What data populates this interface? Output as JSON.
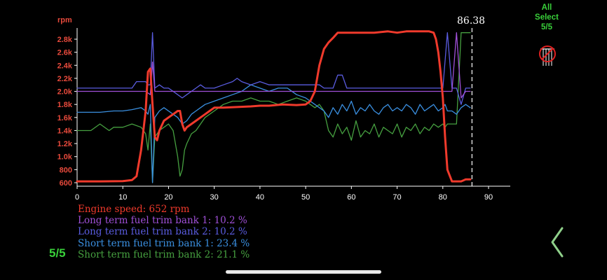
{
  "colors": {
    "engine_speed": "#f03a2c",
    "lt_bank1": "#a050d8",
    "lt_bank2": "#5a5ce0",
    "st_bank1": "#3a8fe0",
    "st_bank2": "#46a040",
    "axis_label": "#e84a3c",
    "accent_green": "#39d03a"
  },
  "side_panel": {
    "select_line1": "All",
    "select_line2": "Select",
    "select_count": "5/5",
    "no_select_icon": "no-select-icon"
  },
  "page_counter": "5/5",
  "cursor_value": "86.38",
  "legend": [
    {
      "text": "Engine speed: 652 rpm",
      "color": "#f03a2c"
    },
    {
      "text": "Long term fuel trim bank 1: 10.2 %",
      "color": "#a050d8"
    },
    {
      "text": "Long term fuel trim bank 2: 10.2 %",
      "color": "#5a5ce0"
    },
    {
      "text": "Short term fuel trim bank 1: 23.4 %",
      "color": "#3a8fe0"
    },
    {
      "text": "Short term fuel trim bank 2: 21.1 %",
      "color": "#46a040"
    }
  ],
  "chart_data": {
    "type": "line",
    "ylabel": "rpm",
    "xlim": [
      0,
      95
    ],
    "ylim": [
      550,
      3000
    ],
    "x_ticks": [
      "0",
      "10",
      "20",
      "30",
      "40",
      "50",
      "60",
      "70",
      "80",
      "90"
    ],
    "y_ticks": [
      "600",
      "800",
      "1.0k",
      "1.2k",
      "1.4k",
      "1.6k",
      "1.8k",
      "2.0k",
      "2.2k",
      "2.4k",
      "2.6k",
      "2.8k"
    ],
    "cursor_x": 86.38,
    "series": [
      {
        "name": "Engine speed",
        "color": "#f03a2c",
        "x": [
          0,
          5,
          10,
          12,
          13,
          14,
          15,
          15.5,
          16,
          16.5,
          17,
          17.5,
          18,
          19,
          20,
          21,
          22,
          22.5,
          23,
          23.5,
          24,
          25,
          26,
          27,
          28,
          29,
          30,
          32,
          35,
          38,
          40,
          42,
          45,
          48,
          50,
          51,
          52,
          53,
          54,
          55,
          56,
          57,
          58,
          60,
          62,
          65,
          68,
          70,
          72,
          75,
          77,
          78,
          78.5,
          79,
          79.5,
          80,
          80.5,
          81,
          82,
          83,
          84,
          85,
          86
        ],
        "y": [
          620,
          620,
          625,
          640,
          700,
          1100,
          1700,
          2300,
          2350,
          1800,
          1300,
          1250,
          1400,
          1550,
          1600,
          1650,
          1700,
          1700,
          1500,
          1400,
          1450,
          1500,
          1550,
          1600,
          1650,
          1700,
          1750,
          1750,
          1760,
          1770,
          1780,
          1780,
          1800,
          1790,
          1800,
          1850,
          2000,
          2400,
          2650,
          2750,
          2820,
          2900,
          2900,
          2900,
          2900,
          2900,
          2920,
          2900,
          2920,
          2920,
          2920,
          2900,
          2800,
          2600,
          2300,
          1900,
          1300,
          800,
          620,
          620,
          620,
          650,
          652
        ]
      },
      {
        "name": "Long term fuel trim bank 1",
        "color": "#a050d8",
        "x": [
          0,
          10,
          15,
          16,
          16.5,
          17,
          17.5,
          18,
          20,
          22,
          24,
          26,
          28,
          30,
          33,
          35,
          40,
          45,
          50,
          52,
          53,
          54,
          55,
          56,
          57,
          58,
          60,
          65,
          70,
          75,
          78,
          79,
          80,
          81,
          82,
          83,
          84,
          85,
          86
        ],
        "y": [
          2000,
          2000,
          2000,
          1950,
          2450,
          2000,
          2000,
          2000,
          2000,
          2000,
          2000,
          2000,
          2000,
          2000,
          2000,
          2000,
          2000,
          2000,
          2000,
          2000,
          2000,
          2000,
          2000,
          2000,
          2000,
          2000,
          2000,
          2000,
          2000,
          2000,
          2000,
          2000,
          2000,
          2000,
          2000,
          2900,
          1900,
          2000,
          2000
        ]
      },
      {
        "name": "Long term fuel trim bank 2",
        "color": "#5a5ce0",
        "x": [
          0,
          5,
          10,
          11,
          12,
          13,
          14,
          15,
          15.5,
          16,
          16.5,
          17,
          18,
          19,
          20,
          21,
          22,
          23,
          24,
          25,
          26,
          27,
          28,
          30,
          32,
          34,
          35,
          36,
          38,
          40,
          42,
          44,
          46,
          48,
          50,
          52,
          53,
          54,
          55,
          56,
          57,
          58,
          59,
          60,
          62,
          64,
          66,
          68,
          70,
          72,
          74,
          76,
          78,
          79,
          80,
          81,
          82,
          83,
          84,
          85,
          86
        ],
        "y": [
          2050,
          2050,
          2050,
          2050,
          2050,
          2150,
          2150,
          2150,
          2100,
          2100,
          2900,
          2050,
          2100,
          2050,
          2050,
          2000,
          1950,
          1900,
          1950,
          2000,
          2050,
          2100,
          2050,
          2050,
          2100,
          2150,
          2200,
          2150,
          2100,
          2150,
          2100,
          2100,
          2100,
          2100,
          2100,
          2100,
          2100,
          2050,
          2050,
          2050,
          2250,
          2250,
          2050,
          2050,
          2050,
          2050,
          2050,
          2050,
          2050,
          2050,
          2050,
          2050,
          2050,
          2050,
          2050,
          2900,
          2050,
          2050,
          1800,
          2050,
          2050
        ]
      },
      {
        "name": "Short term fuel trim bank 1",
        "color": "#3a8fe0",
        "x": [
          0,
          5,
          8,
          10,
          12,
          14,
          15,
          15.5,
          16,
          16.5,
          17,
          18,
          19,
          20,
          21,
          22,
          23,
          24,
          25,
          26,
          27,
          28,
          30,
          32,
          34,
          36,
          38,
          40,
          42,
          44,
          46,
          48,
          50,
          52,
          53,
          54,
          55,
          56,
          57,
          58,
          59,
          60,
          61,
          62,
          63,
          64,
          65,
          66,
          67,
          68,
          69,
          70,
          71,
          72,
          73,
          74,
          75,
          76,
          77,
          78,
          79,
          80,
          80.5,
          81,
          82,
          83,
          84,
          85,
          86
        ],
        "y": [
          1680,
          1680,
          1700,
          1700,
          1720,
          1750,
          1700,
          1650,
          1800,
          600,
          1600,
          1700,
          1750,
          1700,
          1650,
          1600,
          1500,
          1550,
          1650,
          1700,
          1750,
          1800,
          1850,
          1900,
          1950,
          2000,
          2100,
          2050,
          2000,
          2050,
          2050,
          1950,
          1900,
          1800,
          1750,
          1700,
          1600,
          1750,
          1650,
          1800,
          1700,
          1850,
          1650,
          1750,
          1700,
          1800,
          1700,
          1650,
          1750,
          1800,
          1700,
          1750,
          1700,
          1800,
          1750,
          1650,
          1800,
          1700,
          1750,
          1800,
          1700,
          1750,
          1800,
          1700,
          1700,
          1650,
          1750,
          1800,
          1750
        ]
      },
      {
        "name": "Short term fuel trim bank 2",
        "color": "#46a040",
        "x": [
          0,
          3,
          5,
          7,
          8,
          10,
          12,
          14,
          15,
          15.5,
          16,
          16.5,
          17,
          18,
          19,
          20,
          21,
          22,
          22.5,
          23,
          23.5,
          24,
          25,
          26,
          27,
          28,
          30,
          32,
          34,
          36,
          38,
          40,
          42,
          44,
          46,
          48,
          50,
          52,
          53,
          54,
          55,
          56,
          57,
          58,
          59,
          60,
          61,
          62,
          63,
          64,
          65,
          66,
          67,
          68,
          69,
          70,
          71,
          72,
          73,
          74,
          75,
          76,
          77,
          78,
          79,
          80,
          80.5,
          81,
          82,
          83,
          84,
          85,
          86
        ],
        "y": [
          1400,
          1400,
          1500,
          1400,
          1450,
          1450,
          1500,
          1450,
          1350,
          1100,
          1500,
          600,
          1300,
          1400,
          1450,
          1500,
          1400,
          1000,
          700,
          800,
          1100,
          1200,
          1350,
          1400,
          1500,
          1600,
          1700,
          1800,
          1850,
          1850,
          1900,
          1850,
          1850,
          1800,
          1850,
          1900,
          1850,
          1750,
          1800,
          1700,
          1400,
          1300,
          1500,
          1350,
          1450,
          1250,
          1550,
          1300,
          1400,
          1350,
          1500,
          1300,
          1450,
          1400,
          1350,
          1500,
          1300,
          1450,
          1400,
          1500,
          1350,
          1450,
          1400,
          1500,
          1450,
          1500,
          1450,
          1500,
          1500,
          1500,
          2900,
          2900,
          2900
        ]
      }
    ]
  }
}
